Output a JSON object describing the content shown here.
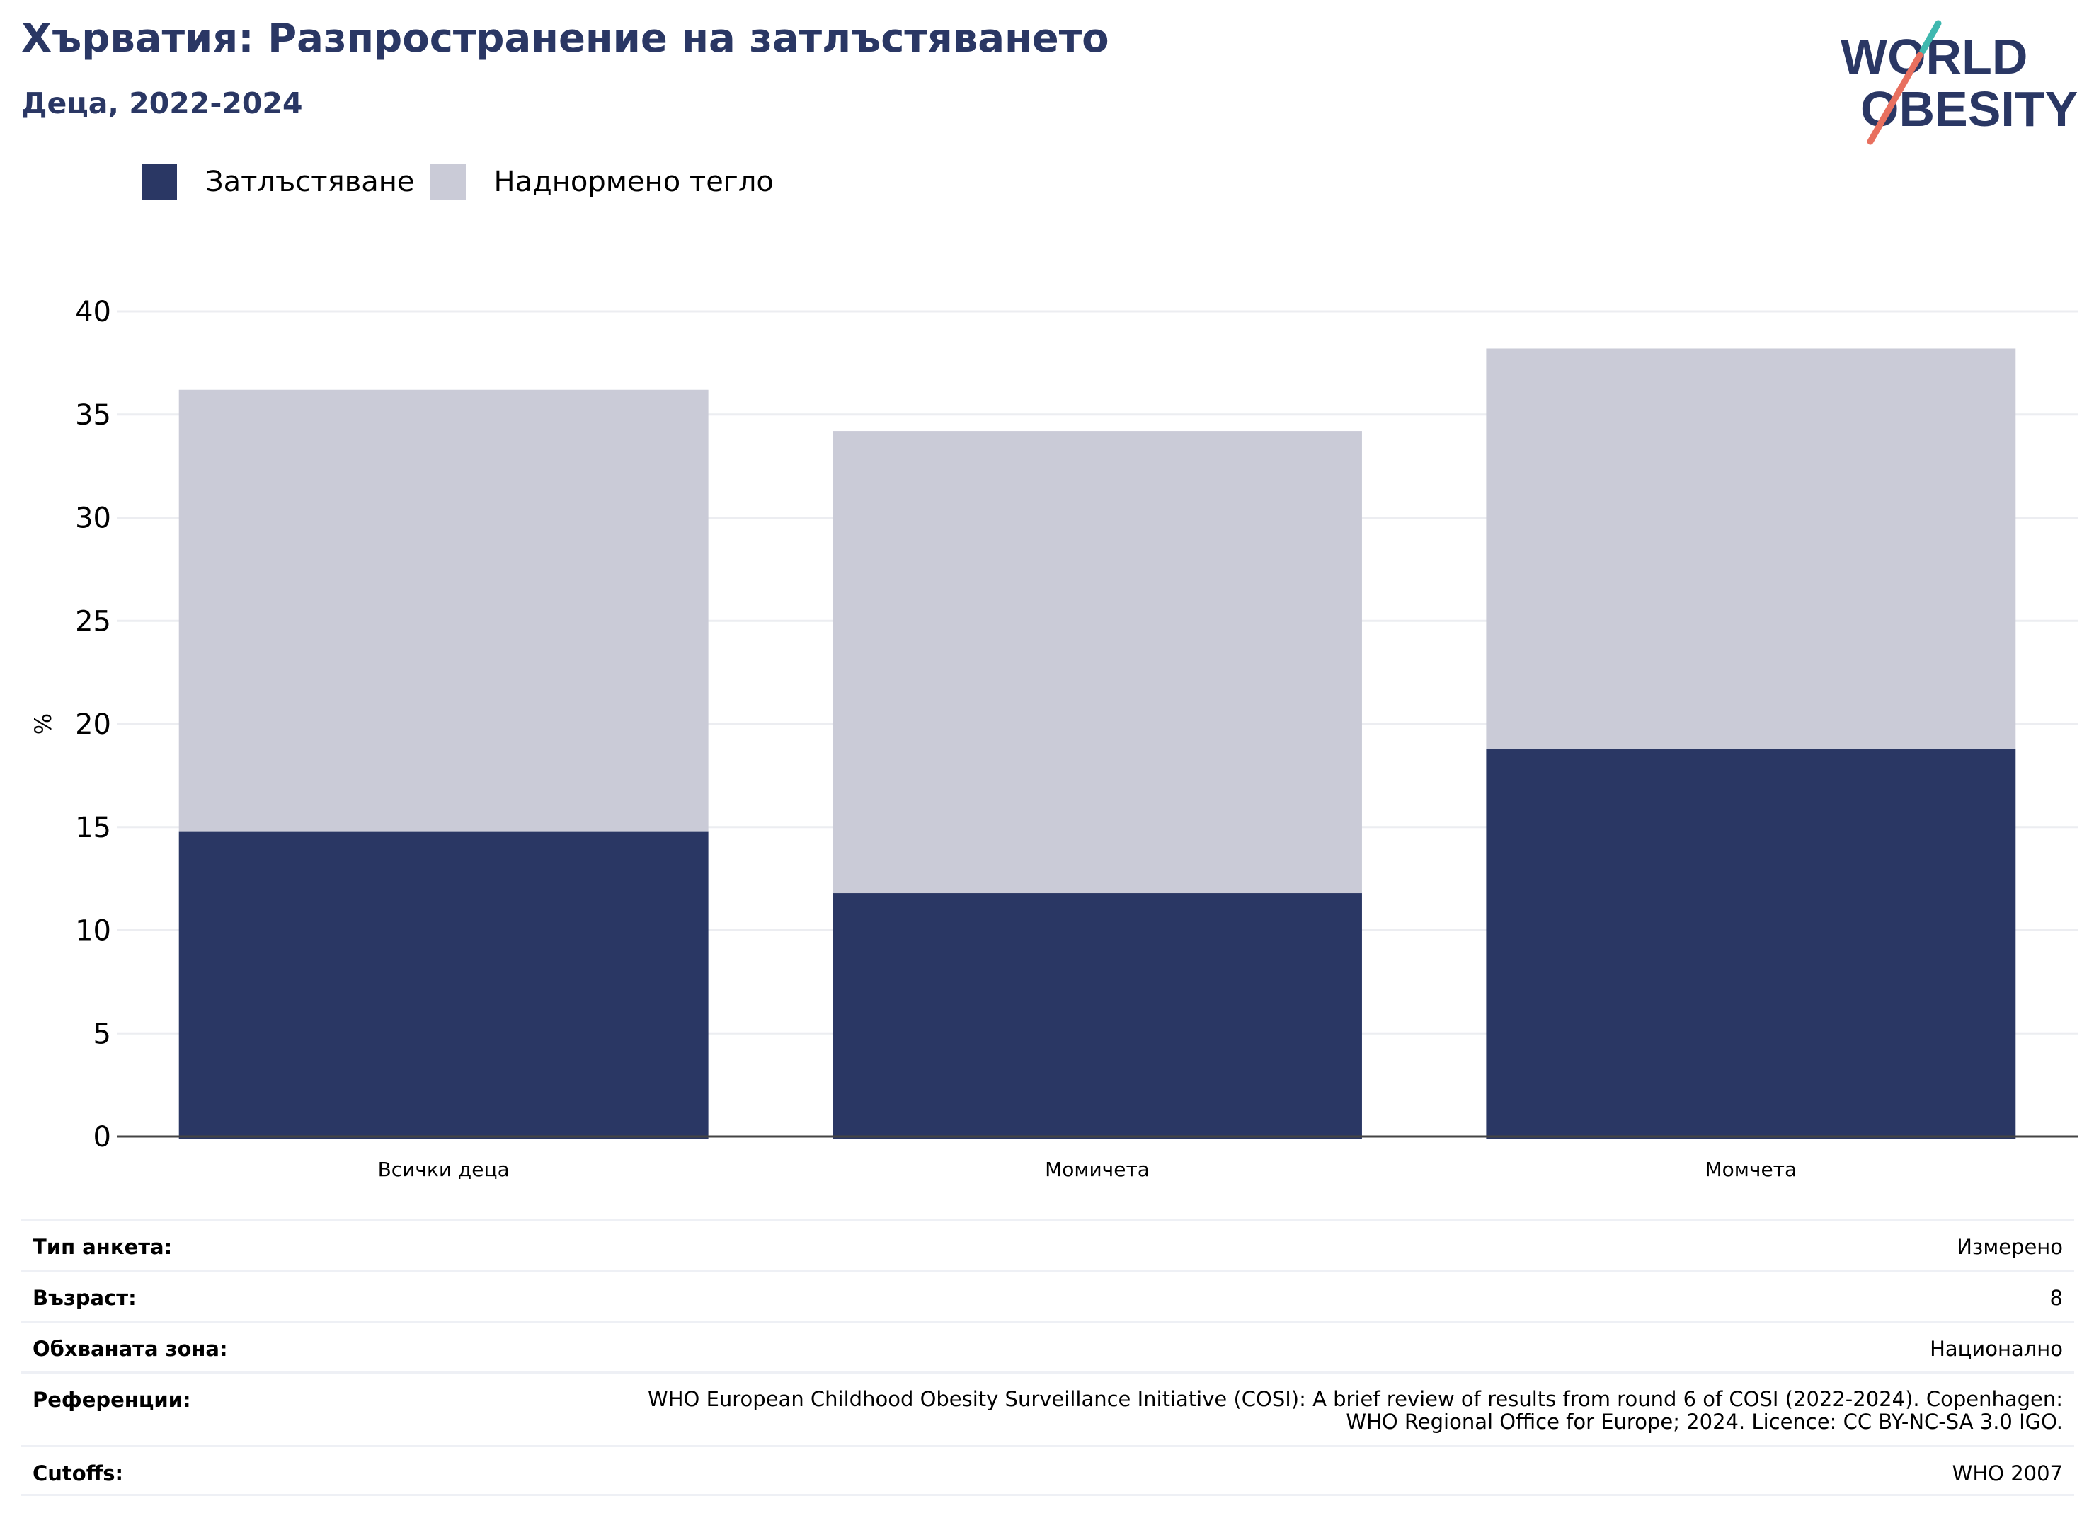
{
  "header": {
    "title": "Хърватия: Разпространение на затлъстяването",
    "subtitle": "Деца, 2022-2024"
  },
  "logo": {
    "line1": "WORLD",
    "line2": "OBESITY",
    "text_color": "#2a3764",
    "teal_accent": "#3fb8af",
    "coral_accent": "#e8705f"
  },
  "legend": {
    "items": [
      {
        "label": "Затлъстяване",
        "color": "#2a3764"
      },
      {
        "label": "Наднормено тегло",
        "color": "#cacbd7"
      }
    ]
  },
  "chart_data": {
    "type": "bar",
    "stacked": true,
    "categories": [
      "Всички деца",
      "Момичета",
      "Момчета"
    ],
    "series": [
      {
        "name": "Затлъстяване",
        "color": "#2a3764",
        "values": [
          14.8,
          11.8,
          18.8
        ]
      },
      {
        "name": "Наднормено тегло",
        "color": "#cacbd7",
        "values": [
          21.4,
          22.4,
          19.4
        ]
      }
    ],
    "ylabel": "%",
    "ylim": [
      0,
      40
    ],
    "yticks": [
      0,
      5,
      10,
      15,
      20,
      25,
      30,
      35,
      40
    ],
    "grid": true,
    "legend_position": "top-left"
  },
  "info": {
    "rows": [
      {
        "label": "Тип анкета:",
        "value": "Измерено"
      },
      {
        "label": "Възраст:",
        "value": "8"
      },
      {
        "label": "Обхваната зона:",
        "value": "Национално"
      },
      {
        "label": "Референции:",
        "value_line1": "WHO European Childhood Obesity Surveillance Initiative (COSI): A brief review of results from round 6 of COSI (2022-2024). Copenhagen:",
        "value_line2": "WHO Regional Office for Europe; 2024. Licence: CC BY-NC-SA 3.0 IGO."
      },
      {
        "label": "Cutoffs:",
        "value": "WHO 2007"
      }
    ]
  }
}
